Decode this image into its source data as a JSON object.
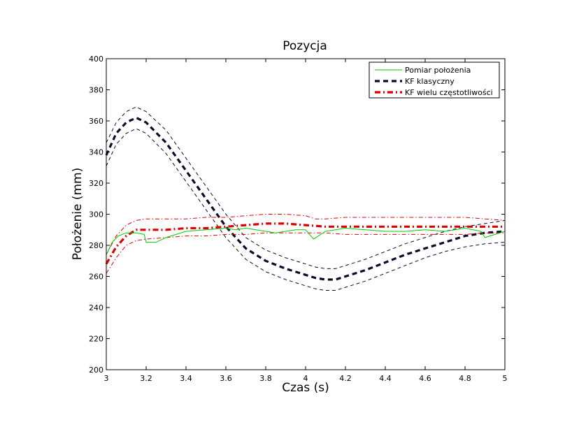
{
  "chart_data": {
    "type": "line",
    "title": "Pozycja",
    "xlabel": "Czas (s)",
    "ylabel": "Położenie (mm)",
    "xlim": [
      3,
      5
    ],
    "ylim": [
      200,
      400
    ],
    "xticks": [
      "3",
      "3.2",
      "3.4",
      "3.6",
      "3.8",
      "4",
      "4.2",
      "4.4",
      "4.6",
      "4.8",
      "5"
    ],
    "yticks": [
      "200",
      "220",
      "240",
      "260",
      "280",
      "300",
      "320",
      "340",
      "360",
      "380",
      "400"
    ],
    "grid": false,
    "legend_position": "top-right",
    "series": [
      {
        "name": "Pomiar położenia",
        "color": "#00cc00",
        "style": "solid",
        "legend": true,
        "x": [
          3.0,
          3.03,
          3.06,
          3.1,
          3.15,
          3.19,
          3.2,
          3.25,
          3.3,
          3.4,
          3.5,
          3.6,
          3.65,
          3.7,
          3.8,
          3.85,
          3.9,
          3.95,
          4.0,
          4.04,
          4.1,
          4.2,
          4.3,
          4.4,
          4.5,
          4.6,
          4.7,
          4.8,
          4.88,
          4.9,
          4.95,
          5.0
        ],
        "y": [
          274,
          282,
          286,
          288,
          288,
          287,
          282,
          282,
          285,
          289,
          290,
          291,
          290,
          291,
          289,
          288,
          289,
          290,
          290,
          284,
          289,
          291,
          290,
          289,
          289,
          290,
          289,
          291,
          289,
          285,
          287,
          289
        ]
      },
      {
        "name": "KF klasyczny",
        "color": "#0a0a2a",
        "style": "dashed-thick",
        "legend": true,
        "x": [
          3.0,
          3.05,
          3.1,
          3.15,
          3.2,
          3.3,
          3.4,
          3.5,
          3.6,
          3.7,
          3.8,
          3.9,
          4.0,
          4.05,
          4.1,
          4.15,
          4.2,
          4.3,
          4.4,
          4.5,
          4.6,
          4.7,
          4.8,
          4.9,
          5.0
        ],
        "y": [
          338,
          352,
          359,
          362,
          359,
          346,
          328,
          310,
          292,
          278,
          270,
          265,
          261,
          259,
          258,
          258,
          260,
          264,
          269,
          274,
          278,
          282,
          286,
          288,
          289
        ]
      },
      {
        "name": "KF klasyczny upper",
        "color": "#0a0a2a",
        "style": "dashed-thin",
        "legend": false,
        "x": [
          3.0,
          3.05,
          3.1,
          3.15,
          3.2,
          3.3,
          3.4,
          3.5,
          3.6,
          3.7,
          3.8,
          3.9,
          4.0,
          4.05,
          4.1,
          4.15,
          4.2,
          4.3,
          4.4,
          4.5,
          4.6,
          4.7,
          4.8,
          4.9,
          5.0
        ],
        "y": [
          346,
          359,
          366,
          369,
          366,
          354,
          336,
          318,
          300,
          285,
          277,
          272,
          268,
          266,
          265,
          265,
          267,
          271,
          276,
          281,
          285,
          289,
          292,
          294,
          296
        ]
      },
      {
        "name": "KF klasyczny lower",
        "color": "#0a0a2a",
        "style": "dashed-thin",
        "legend": false,
        "x": [
          3.0,
          3.05,
          3.1,
          3.15,
          3.2,
          3.3,
          3.4,
          3.5,
          3.6,
          3.7,
          3.8,
          3.9,
          4.0,
          4.05,
          4.1,
          4.15,
          4.2,
          4.3,
          4.4,
          4.5,
          4.6,
          4.7,
          4.8,
          4.9,
          5.0
        ],
        "y": [
          331,
          345,
          352,
          355,
          352,
          339,
          321,
          303,
          285,
          271,
          263,
          258,
          254,
          252,
          251,
          251,
          253,
          257,
          262,
          267,
          272,
          276,
          279,
          281,
          282
        ]
      },
      {
        "name": "KF wielu częstotliwości",
        "color": "#dd0000",
        "style": "dashdot-thick",
        "legend": true,
        "x": [
          3.0,
          3.05,
          3.1,
          3.15,
          3.2,
          3.3,
          3.4,
          3.5,
          3.6,
          3.7,
          3.8,
          3.9,
          4.0,
          4.1,
          4.2,
          4.3,
          4.4,
          4.5,
          4.6,
          4.7,
          4.8,
          4.9,
          5.0
        ],
        "y": [
          268,
          279,
          286,
          290,
          290,
          290,
          291,
          291,
          292,
          293,
          294,
          294,
          293,
          292,
          292,
          292,
          292,
          292,
          292,
          292,
          292,
          292,
          292
        ]
      },
      {
        "name": "KF wielu częstotliwości upper",
        "color": "#dd0000",
        "style": "dashdot-thin",
        "legend": false,
        "x": [
          3.0,
          3.05,
          3.1,
          3.15,
          3.2,
          3.3,
          3.4,
          3.5,
          3.6,
          3.7,
          3.8,
          3.9,
          4.0,
          4.05,
          4.1,
          4.2,
          4.3,
          4.4,
          4.5,
          4.6,
          4.7,
          4.8,
          4.9,
          5.0
        ],
        "y": [
          274,
          286,
          293,
          296,
          297,
          297,
          297,
          298,
          298,
          299,
          300,
          300,
          299,
          297,
          297,
          298,
          298,
          298,
          298,
          298,
          298,
          298,
          297,
          296
        ]
      },
      {
        "name": "KF wielu częstotliwości lower",
        "color": "#dd0000",
        "style": "dashdot-thin",
        "legend": false,
        "x": [
          3.0,
          3.05,
          3.1,
          3.15,
          3.2,
          3.3,
          3.4,
          3.5,
          3.6,
          3.7,
          3.8,
          3.9,
          4.0,
          4.1,
          4.2,
          4.3,
          4.4,
          4.5,
          4.6,
          4.7,
          4.8,
          4.9,
          5.0
        ],
        "y": [
          262,
          272,
          280,
          283,
          284,
          285,
          286,
          286,
          287,
          287,
          288,
          288,
          288,
          288,
          287,
          287,
          287,
          287,
          287,
          287,
          287,
          288,
          288
        ]
      }
    ]
  }
}
